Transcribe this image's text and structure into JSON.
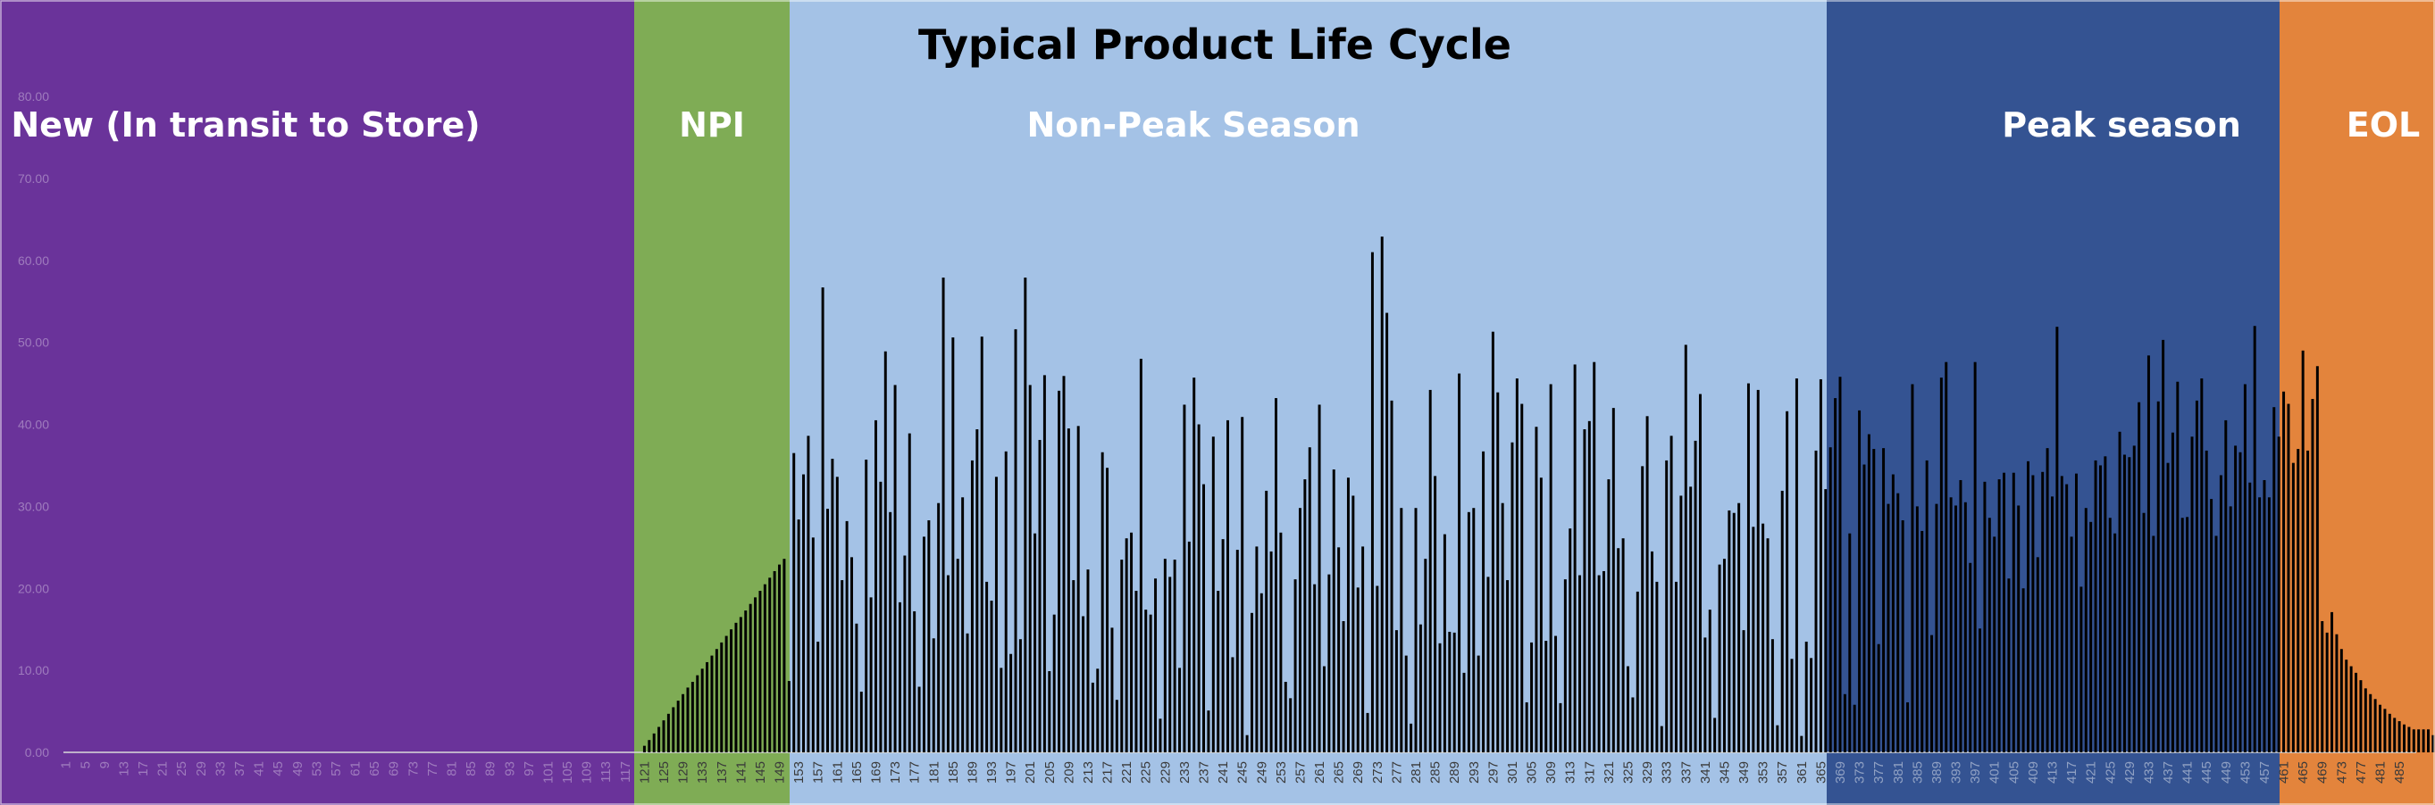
{
  "chart_data": {
    "type": "bar",
    "title": "Typical Product Life Cycle",
    "xlabel": "",
    "ylabel": "",
    "ylim": [
      0,
      80
    ],
    "y_ticks": [
      0,
      10,
      20,
      30,
      40,
      50,
      60,
      70,
      80
    ],
    "y_tick_labels": [
      "0.00",
      "10.00",
      "20.00",
      "30.00",
      "40.00",
      "50.00",
      "60.00",
      "70.00",
      "80.00"
    ],
    "x_range": [
      1,
      488
    ],
    "x_tick_step": 4,
    "grid": false,
    "legend": "none",
    "phases": [
      {
        "label": "New (In transit to Store)",
        "start": 1,
        "end": 120,
        "color": "#6a339a"
      },
      {
        "label": "NPI",
        "start": 121,
        "end": 150,
        "color": "#7fac55"
      },
      {
        "label": "Non-Peak Season",
        "start": 151,
        "end": 365,
        "color": "#a4c2e6"
      },
      {
        "label": "Peak season",
        "start": 366,
        "end": 459,
        "color": "#345392"
      },
      {
        "label": "EOL",
        "start": 460,
        "end": 488,
        "color": "#e3843c"
      }
    ],
    "series": [
      {
        "values_note": "x = day 1..488, y = units; day 1-120 = 0, NPI ramp 121-150, noisy plateau 151-365, higher peak 366-459, decay 460-488",
        "x_start": 1,
        "values": [
          0,
          0,
          0,
          0,
          0,
          0,
          0,
          0,
          0,
          0,
          0,
          0,
          0,
          0,
          0,
          0,
          0,
          0,
          0,
          0,
          0,
          0,
          0,
          0,
          0,
          0,
          0,
          0,
          0,
          0,
          0,
          0,
          0,
          0,
          0,
          0,
          0,
          0,
          0,
          0,
          0,
          0,
          0,
          0,
          0,
          0,
          0,
          0,
          0,
          0,
          0,
          0,
          0,
          0,
          0,
          0,
          0,
          0,
          0,
          0,
          0,
          0,
          0,
          0,
          0,
          0,
          0,
          0,
          0,
          0,
          0,
          0,
          0,
          0,
          0,
          0,
          0,
          0,
          0,
          0,
          0,
          0,
          0,
          0,
          0,
          0,
          0,
          0,
          0,
          0,
          0,
          0,
          0,
          0,
          0,
          0,
          0,
          0,
          0,
          0,
          0,
          0,
          0,
          0,
          0,
          0,
          0,
          0,
          0,
          0,
          0,
          0,
          0,
          0,
          0,
          0,
          0,
          0,
          0,
          0,
          0.8,
          1.5,
          2.3,
          3.1,
          3.9,
          4.7,
          5.5,
          6.3,
          7.1,
          7.9,
          8.6,
          9.4,
          10.2,
          11.0,
          11.8,
          12.6,
          13.4,
          14.2,
          15.0,
          15.8,
          16.5,
          17.3,
          18.1,
          18.9,
          19.7,
          20.5,
          21.3,
          22.1,
          22.9,
          23.6,
          8.7,
          36.5,
          28.4,
          33.9,
          38.6,
          26.2,
          13.5,
          56.7,
          29.7,
          35.8,
          33.6,
          21.0,
          28.2,
          23.8,
          15.7,
          7.4,
          35.7,
          18.9,
          40.5,
          33.0,
          48.9,
          29.3,
          44.8,
          18.3,
          24.0,
          38.9,
          17.2,
          8.0,
          26.3,
          28.3,
          13.9,
          30.4,
          57.9,
          21.6,
          50.6,
          23.6,
          31.1,
          14.5,
          35.6,
          39.4,
          50.7,
          20.8,
          18.5,
          33.6,
          10.3,
          36.7,
          12.0,
          51.6,
          13.8,
          57.9,
          44.8,
          26.7,
          38.1,
          46.0,
          9.9,
          16.8,
          44.1,
          45.9,
          39.5,
          21.0,
          39.8,
          16.6,
          22.3,
          8.5,
          10.2,
          36.6,
          34.7,
          15.2,
          6.4,
          23.5,
          26.1,
          26.8,
          19.7,
          48.0,
          17.4,
          16.8,
          21.2,
          4.1,
          23.6,
          21.4,
          23.5,
          10.3,
          42.4,
          25.7,
          45.7,
          40.0,
          32.7,
          5.1,
          38.5,
          19.7,
          26.0,
          40.5,
          11.6,
          24.7,
          40.9,
          2.1,
          17.0,
          25.1,
          19.4,
          31.9,
          24.5,
          43.2,
          26.8,
          8.6,
          6.6,
          21.1,
          29.8,
          33.3,
          37.2,
          20.5,
          42.4,
          10.5,
          21.7,
          34.5,
          25.0,
          16.0,
          33.5,
          31.3,
          20.1,
          25.1,
          4.8,
          61.0,
          20.3,
          62.9,
          53.6,
          42.9,
          14.9,
          29.8,
          11.8,
          3.5,
          29.8,
          15.6,
          23.6,
          44.2,
          33.7,
          13.3,
          26.6,
          14.7,
          14.6,
          46.2,
          9.7,
          29.3,
          29.8,
          11.8,
          36.7,
          21.4,
          51.3,
          43.9,
          30.4,
          21.0,
          37.8,
          45.6,
          42.5,
          6.1,
          13.4,
          39.7,
          33.5,
          13.6,
          44.9,
          14.2,
          6.0,
          21.1,
          27.3,
          47.3,
          21.6,
          39.4,
          40.4,
          47.6,
          21.6,
          22.1,
          33.3,
          42.0,
          24.9,
          26.1,
          10.5,
          6.7,
          19.6,
          34.9,
          41.0,
          24.5,
          20.8,
          3.2,
          35.6,
          38.6,
          20.8,
          31.3,
          49.7,
          32.4,
          38.0,
          43.7,
          14.0,
          17.4,
          4.2,
          22.9,
          23.6,
          29.5,
          29.2,
          30.4,
          14.9,
          45.0,
          27.5,
          44.2,
          27.9,
          26.1,
          13.8,
          3.3,
          31.9,
          41.6,
          11.4,
          45.6,
          2.0,
          13.5,
          11.5,
          36.8,
          45.5,
          32.1,
          37.2,
          43.2,
          45.8,
          7.1,
          26.7,
          5.8,
          41.7,
          35.1,
          38.8,
          37.0,
          13.2,
          37.1,
          30.3,
          33.9,
          31.6,
          28.3,
          6.1,
          44.9,
          30.0,
          27.0,
          35.6,
          14.3,
          30.3,
          45.7,
          47.6,
          31.1,
          30.1,
          33.2,
          30.5,
          23.1,
          47.6,
          15.1,
          33.0,
          28.6,
          26.3,
          33.3,
          34.1,
          21.2,
          34.1,
          30.1,
          20.0,
          35.5,
          33.8,
          23.8,
          34.2,
          37.1,
          31.2,
          51.9,
          33.7,
          32.7,
          26.3,
          34.0,
          20.2,
          29.8,
          28.1,
          35.6,
          35.0,
          36.1,
          28.6,
          26.7,
          39.1,
          36.3,
          36.0,
          37.4,
          42.7,
          29.2,
          48.4,
          26.4,
          42.8,
          50.3,
          35.3,
          39.0,
          45.2,
          28.6,
          28.7,
          38.5,
          42.9,
          45.6,
          36.8,
          30.9,
          26.4,
          33.8,
          40.5,
          30.0,
          37.4,
          36.6,
          44.9,
          32.9,
          52.0,
          31.1,
          33.2,
          31.1,
          42.1,
          38.5,
          44.0,
          42.5,
          35.3,
          37.0,
          49.0,
          36.8,
          43.1,
          47.1,
          16.0,
          14.6,
          17.1,
          14.4,
          12.6,
          11.3,
          10.5,
          9.7,
          8.8,
          7.8,
          7.1,
          6.5,
          5.8,
          5.3,
          4.7,
          4.2,
          3.8,
          3.4,
          3.1,
          2.8,
          2.8,
          2.8,
          2.8,
          2.1,
          1.8,
          1.7,
          1.6,
          1.5,
          1.4,
          1.3,
          1.2,
          1.1
        ]
      }
    ]
  }
}
